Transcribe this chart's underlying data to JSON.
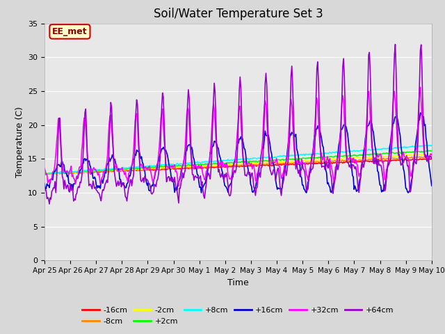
{
  "title": "Soil/Water Temperature Set 3",
  "xlabel": "Time",
  "ylabel": "Temperature (C)",
  "ylim": [
    0,
    35
  ],
  "yticks": [
    0,
    5,
    10,
    15,
    20,
    25,
    30,
    35
  ],
  "annotation_text": "EE_met",
  "annotation_bg": "#ffffcc",
  "annotation_border": "#cc0000",
  "fig_bg": "#d8d8d8",
  "plot_bg": "#e8e8e8",
  "grid_color": "#ffffff",
  "series_colors": {
    "-16cm": "#ff0000",
    "-8cm": "#ff8800",
    "-2cm": "#ffff00",
    "+2cm": "#00ff00",
    "+8cm": "#00ffff",
    "+16cm": "#0000cc",
    "+32cm": "#ff00ff",
    "+64cm": "#9900cc"
  },
  "x_tick_labels": [
    "Apr 25",
    "Apr 26",
    "Apr 27",
    "Apr 28",
    "Apr 29",
    "Apr 30",
    "May 1",
    "May 2",
    "May 3",
    "May 4",
    "May 5",
    "May 6",
    "May 7",
    "May 8",
    "May 9",
    "May 10"
  ],
  "num_points": 480,
  "days": 15
}
